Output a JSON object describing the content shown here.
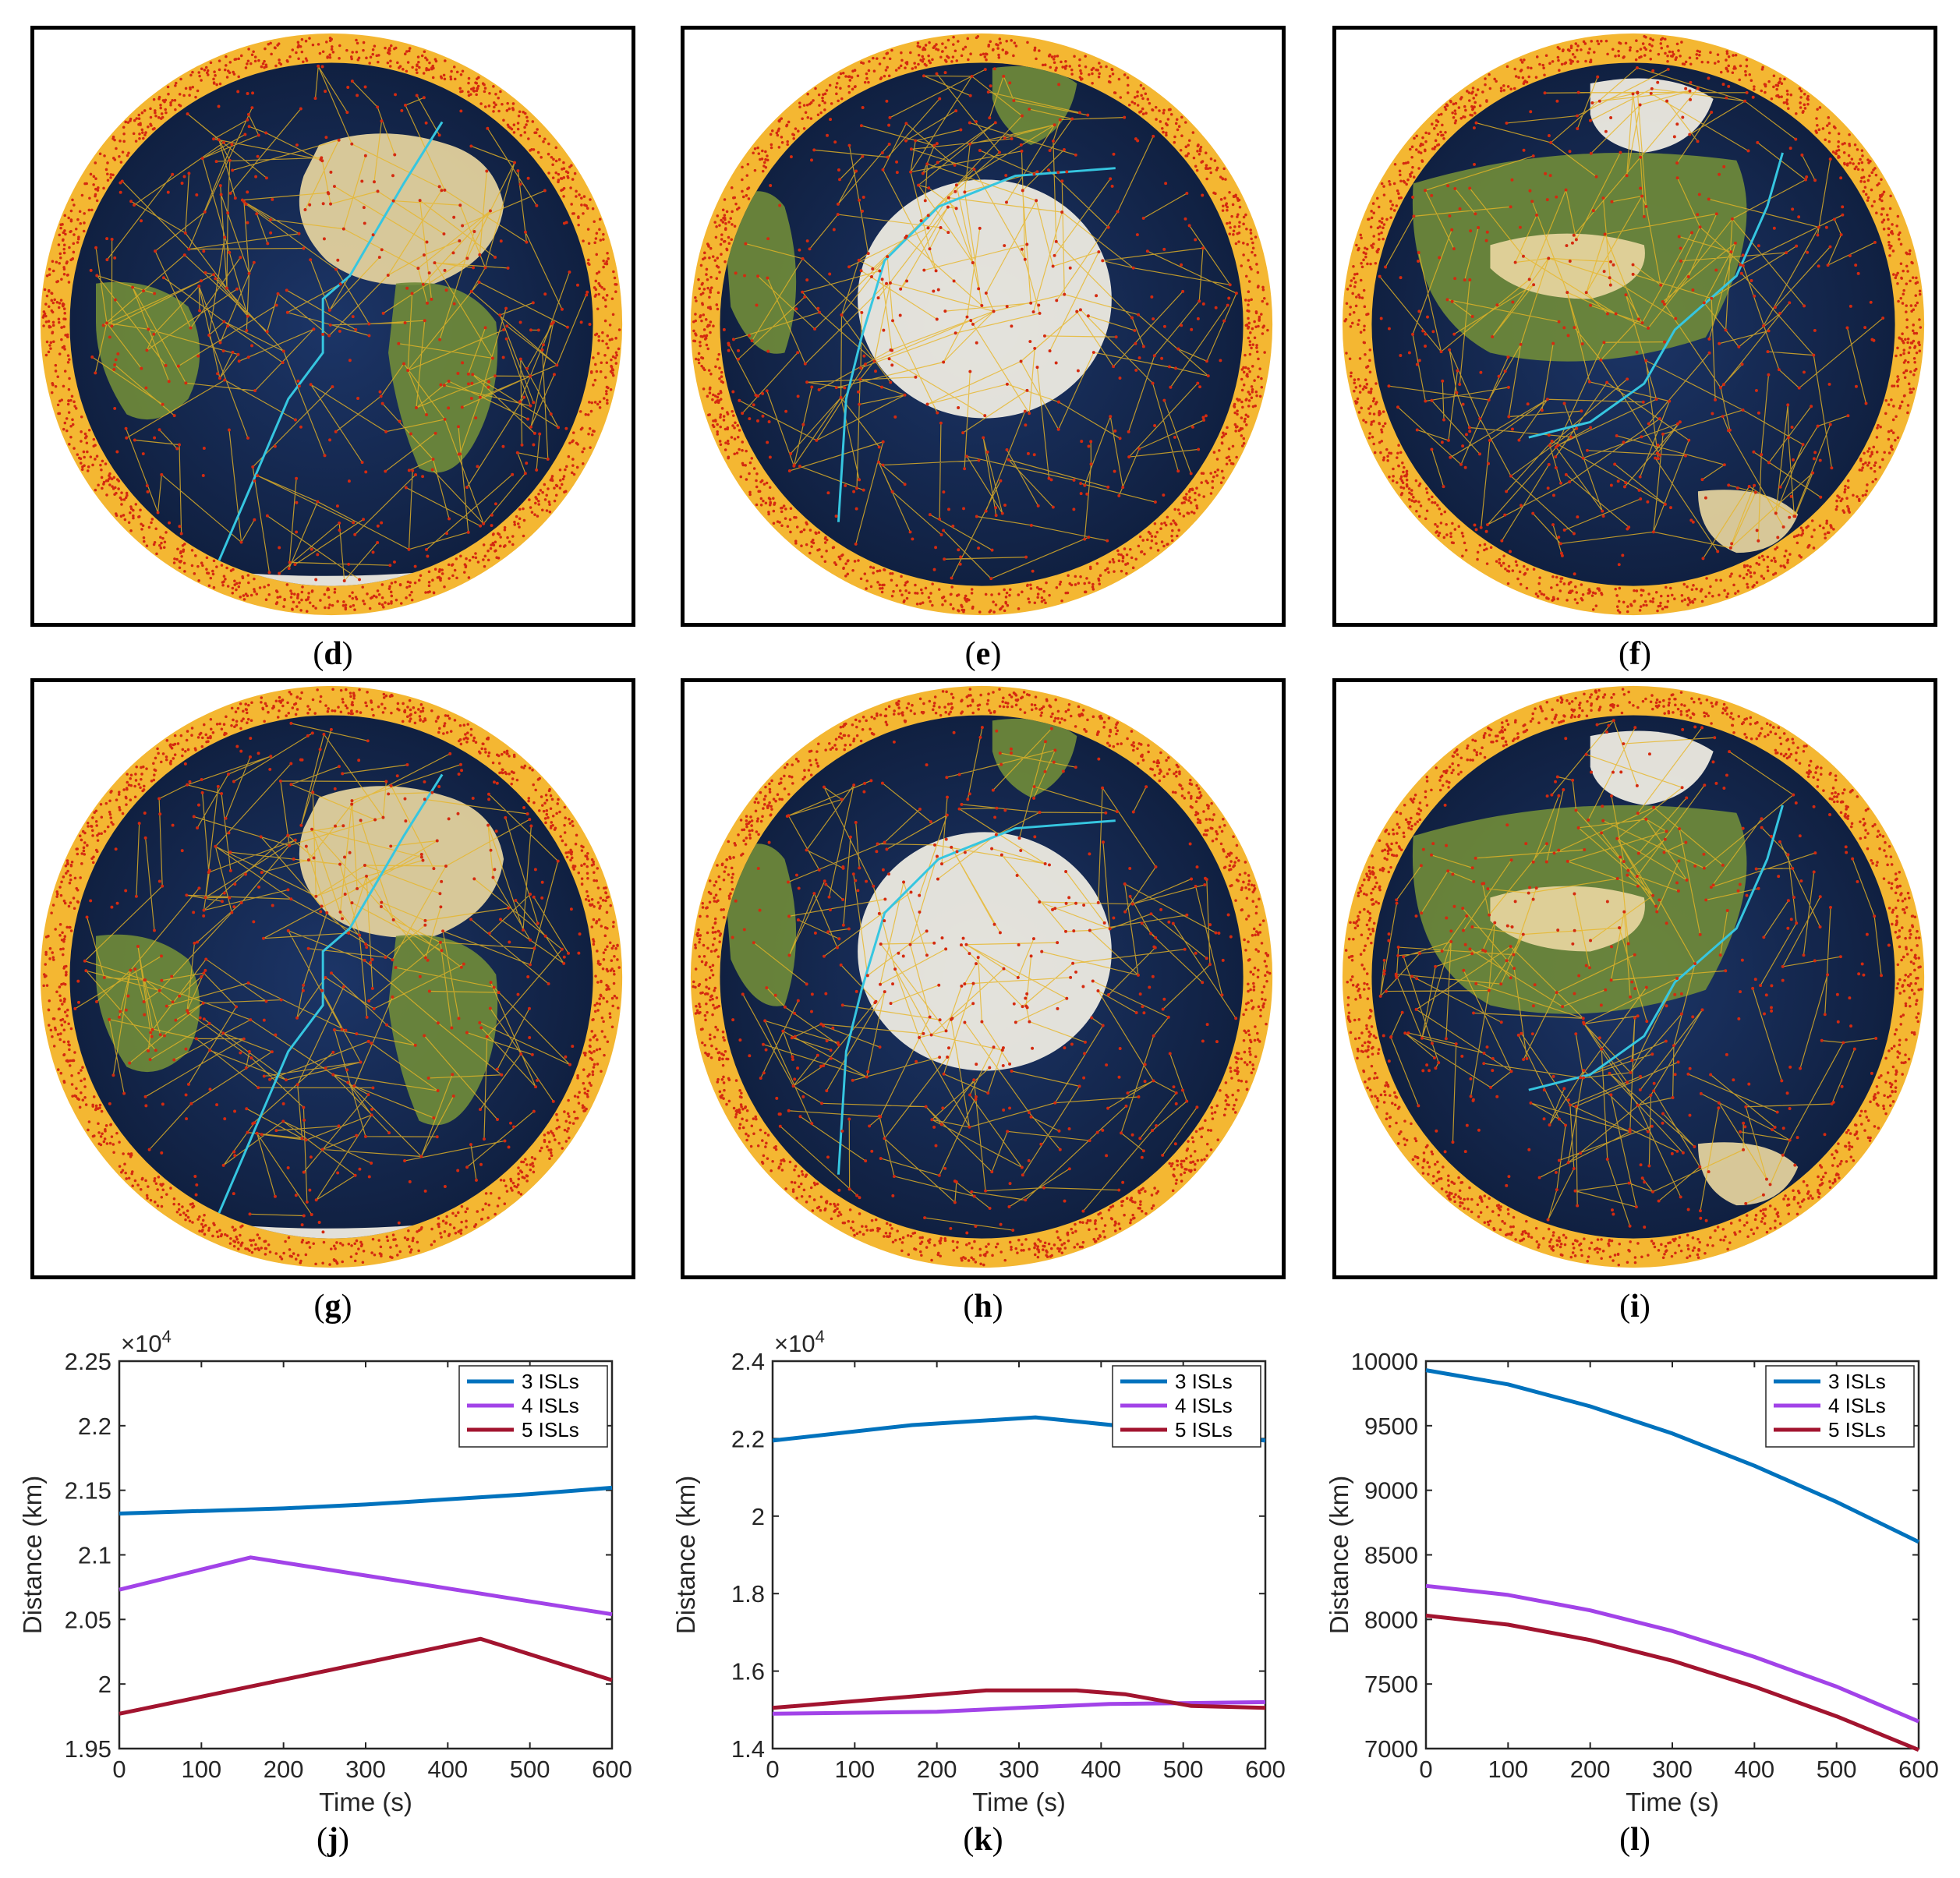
{
  "globes": [
    {
      "caption": "d",
      "view": "africa"
    },
    {
      "caption": "e",
      "view": "antarctica"
    },
    {
      "caption": "f",
      "view": "asia"
    },
    {
      "caption": "g",
      "view": "africa"
    },
    {
      "caption": "h",
      "view": "antarctica"
    },
    {
      "caption": "i",
      "view": "asia"
    }
  ],
  "colors": {
    "ocean": "#0f1e3d",
    "land": "#6f8a3a",
    "desert": "#e8d6a0",
    "ice": "#f4f1e6",
    "ring": "#f4b732",
    "satellite": "#d42a10",
    "link": "#e7b526",
    "route": "#36c6e0"
  },
  "chart_data": [
    {
      "caption": "j",
      "type": "line",
      "xlabel": "Time (s)",
      "ylabel": "Distance (km)",
      "exponent_label": "×10",
      "exponent": "4",
      "xlim": [
        0,
        600
      ],
      "ylim": [
        1.95,
        2.25
      ],
      "xticks": [
        "0",
        "100",
        "200",
        "300",
        "400",
        "500",
        "600"
      ],
      "yticks": [
        "1.95",
        "2",
        "2.05",
        "2.1",
        "2.15",
        "2.2",
        "2.25"
      ],
      "legend_position": "top-right",
      "series": [
        {
          "name": "3 ISLs",
          "color": "#0072bd",
          "x": [
            0,
            100,
            200,
            300,
            400,
            500,
            600
          ],
          "y": [
            2.132,
            2.134,
            2.136,
            2.139,
            2.143,
            2.147,
            2.152
          ]
        },
        {
          "name": "4 ISLs",
          "color": "#a243e8",
          "x": [
            0,
            160,
            600
          ],
          "y": [
            2.073,
            2.098,
            2.054
          ]
        },
        {
          "name": "5 ISLs",
          "color": "#a2142f",
          "x": [
            0,
            440,
            600
          ],
          "y": [
            1.977,
            2.035,
            2.003
          ]
        }
      ]
    },
    {
      "caption": "k",
      "type": "line",
      "xlabel": "Time (s)",
      "ylabel": "Distance (km)",
      "exponent_label": "×10",
      "exponent": "4",
      "xlim": [
        0,
        600
      ],
      "ylim": [
        1.4,
        2.4
      ],
      "xticks": [
        "0",
        "100",
        "200",
        "300",
        "400",
        "500",
        "600"
      ],
      "yticks": [
        "1.4",
        "1.6",
        "1.8",
        "2",
        "2.2",
        "2.4"
      ],
      "legend_position": "top-right",
      "series": [
        {
          "name": "3 ISLs",
          "color": "#0072bd",
          "x": [
            0,
            170,
            320,
            600
          ],
          "y": [
            2.195,
            2.235,
            2.255,
            2.195
          ]
        },
        {
          "name": "4 ISLs",
          "color": "#a243e8",
          "x": [
            0,
            200,
            300,
            410,
            600
          ],
          "y": [
            1.49,
            1.495,
            1.505,
            1.515,
            1.52
          ]
        },
        {
          "name": "5 ISLs",
          "color": "#a2142f",
          "x": [
            0,
            260,
            370,
            430,
            510,
            600
          ],
          "y": [
            1.505,
            1.55,
            1.55,
            1.54,
            1.51,
            1.505
          ]
        }
      ]
    },
    {
      "caption": "l",
      "type": "line",
      "xlabel": "Time (s)",
      "ylabel": "Distance (km)",
      "xlim": [
        0,
        600
      ],
      "ylim": [
        7000,
        10000
      ],
      "xticks": [
        "0",
        "100",
        "200",
        "300",
        "400",
        "500",
        "600"
      ],
      "yticks": [
        "7000",
        "7500",
        "8000",
        "8500",
        "9000",
        "9500",
        "10000"
      ],
      "legend_position": "top-right",
      "series": [
        {
          "name": "3 ISLs",
          "color": "#0072bd",
          "x": [
            0,
            100,
            200,
            300,
            400,
            500,
            600
          ],
          "y": [
            9930,
            9820,
            9650,
            9440,
            9190,
            8910,
            8600
          ]
        },
        {
          "name": "4 ISLs",
          "color": "#a243e8",
          "x": [
            0,
            100,
            200,
            300,
            400,
            500,
            600
          ],
          "y": [
            8260,
            8190,
            8070,
            7910,
            7710,
            7480,
            7210
          ]
        },
        {
          "name": "5 ISLs",
          "color": "#a2142f",
          "x": [
            0,
            100,
            200,
            300,
            400,
            500,
            600
          ],
          "y": [
            8030,
            7960,
            7840,
            7680,
            7480,
            7250,
            6990
          ]
        }
      ]
    }
  ]
}
